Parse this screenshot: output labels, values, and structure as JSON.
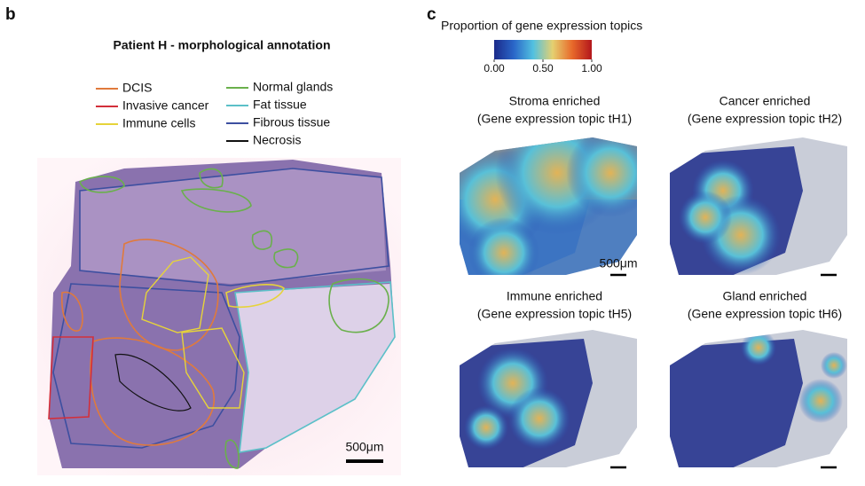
{
  "panel_b": {
    "label": "b",
    "title": "Patient H - morphological annotation",
    "legend": [
      {
        "name": "DCIS",
        "color": "#e07a3c"
      },
      {
        "name": "Invasive cancer",
        "color": "#d32f3a"
      },
      {
        "name": "Immune cells",
        "color": "#e6d33a"
      },
      {
        "name": "Normal glands",
        "color": "#6ab04c"
      },
      {
        "name": "Fat tissue",
        "color": "#5bc0c8"
      },
      {
        "name": "Fibrous tissue",
        "color": "#3d4fa0"
      },
      {
        "name": "Necrosis",
        "color": "#111111"
      }
    ],
    "scale_bar": "500μm"
  },
  "panel_c": {
    "label": "c",
    "colorbar": {
      "title": "Proportion of gene expression topics",
      "lim": [
        0,
        1
      ],
      "ticks": [
        {
          "value": 0,
          "label": "0.00"
        },
        {
          "value": 0.5,
          "label": "0.50"
        },
        {
          "value": 1,
          "label": "1.00"
        }
      ]
    },
    "maps": [
      {
        "title": "Stroma enriched",
        "subtitle": "(Gene expression topic tH1)"
      },
      {
        "title": "Cancer enriched",
        "subtitle": "(Gene expression topic tH2)"
      },
      {
        "title": "Immune enriched",
        "subtitle": "(Gene expression topic tH5)"
      },
      {
        "title": "Gland enriched",
        "subtitle": "(Gene expression topic tH6)"
      }
    ],
    "scale_bar": "500μm"
  }
}
